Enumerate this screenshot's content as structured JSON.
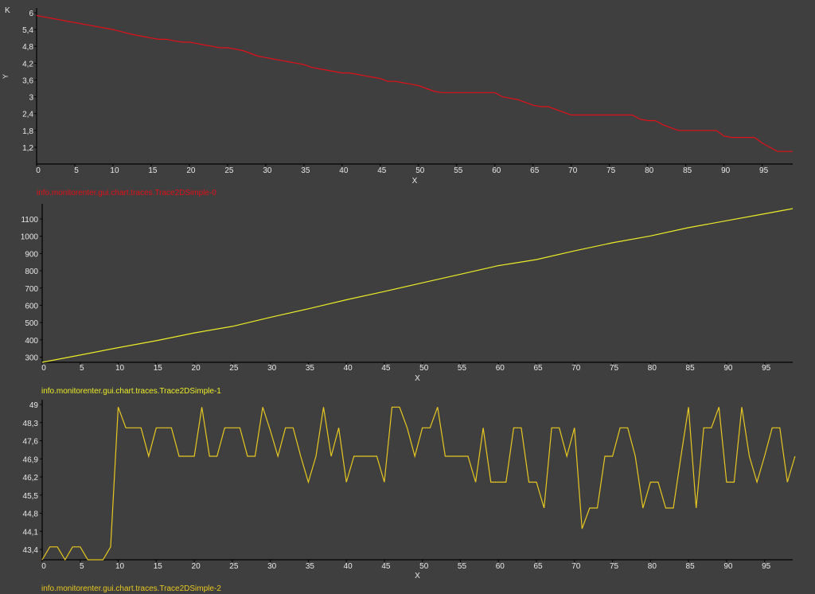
{
  "colors": {
    "background": "#3f3f3f",
    "axis": "#000000",
    "text": "#e8e8e8",
    "trace0": "#e0101a",
    "trace1": "#ecec28",
    "trace2": "#e8c820"
  },
  "chart_data": [
    {
      "type": "line",
      "xlabel": "X",
      "ylabel": "Y",
      "unit_label": "K",
      "xlim": [
        0,
        99
      ],
      "ylim": [
        0.6,
        6
      ],
      "x_ticks": [
        "0",
        "5",
        "10",
        "15",
        "20",
        "25",
        "30",
        "35",
        "40",
        "45",
        "50",
        "55",
        "60",
        "65",
        "70",
        "75",
        "80",
        "85",
        "90",
        "95"
      ],
      "y_ticks": [
        "1,2",
        "1,8",
        "2,4",
        "3",
        "3,6",
        "4,2",
        "4,8",
        "5,4",
        "6"
      ],
      "legend": "info.monitorenter.gui.chart.traces.Trace2DSimple-0",
      "series": [
        {
          "name": "info.monitorenter.gui.chart.traces.Trace2DSimple-0",
          "color": "#e0101a",
          "x": [
            0,
            1,
            2,
            3,
            4,
            5,
            6,
            7,
            8,
            9,
            10,
            11,
            12,
            13,
            14,
            15,
            16,
            17,
            18,
            19,
            20,
            21,
            22,
            23,
            24,
            25,
            26,
            27,
            28,
            29,
            30,
            31,
            32,
            33,
            34,
            35,
            36,
            37,
            38,
            39,
            40,
            41,
            42,
            43,
            44,
            45,
            46,
            47,
            48,
            49,
            50,
            51,
            52,
            53,
            54,
            55,
            56,
            57,
            58,
            59,
            60,
            61,
            62,
            63,
            64,
            65,
            66,
            67,
            68,
            69,
            70,
            71,
            72,
            73,
            74,
            75,
            76,
            77,
            78,
            79,
            80,
            81,
            82,
            83,
            84,
            85,
            86,
            87,
            88,
            89,
            90,
            91,
            92,
            93,
            94,
            95,
            96,
            97,
            98,
            99
          ],
          "values": [
            5.9,
            5.85,
            5.8,
            5.75,
            5.7,
            5.65,
            5.6,
            5.55,
            5.5,
            5.45,
            5.4,
            5.33,
            5.26,
            5.2,
            5.15,
            5.1,
            5.05,
            5.05,
            5.0,
            4.95,
            4.95,
            4.9,
            4.85,
            4.8,
            4.75,
            4.75,
            4.7,
            4.65,
            4.55,
            4.45,
            4.4,
            4.35,
            4.3,
            4.25,
            4.2,
            4.15,
            4.05,
            4.0,
            3.95,
            3.9,
            3.85,
            3.85,
            3.8,
            3.75,
            3.7,
            3.65,
            3.55,
            3.55,
            3.5,
            3.45,
            3.4,
            3.3,
            3.2,
            3.15,
            3.15,
            3.15,
            3.15,
            3.15,
            3.15,
            3.15,
            3.15,
            3.0,
            2.95,
            2.9,
            2.8,
            2.7,
            2.65,
            2.65,
            2.55,
            2.45,
            2.35,
            2.35,
            2.35,
            2.35,
            2.35,
            2.35,
            2.35,
            2.35,
            2.35,
            2.2,
            2.15,
            2.15,
            2.0,
            1.9,
            1.8,
            1.8,
            1.8,
            1.8,
            1.8,
            1.8,
            1.6,
            1.55,
            1.55,
            1.55,
            1.55,
            1.35,
            1.2,
            1.05,
            1.05,
            1.05
          ]
        }
      ]
    },
    {
      "type": "line",
      "xlabel": "X",
      "ylabel": "",
      "xlim": [
        0,
        98.7
      ],
      "ylim": [
        270,
        1160
      ],
      "x_ticks": [
        "0",
        "5",
        "10",
        "15",
        "20",
        "25",
        "30",
        "35",
        "40",
        "45",
        "50",
        "55",
        "60",
        "65",
        "70",
        "75",
        "80",
        "85",
        "90",
        "95"
      ],
      "y_ticks": [
        "300",
        "400",
        "500",
        "600",
        "700",
        "800",
        "900",
        "1000",
        "1100"
      ],
      "legend": "info.monitorenter.gui.chart.traces.Trace2DSimple-1",
      "series": [
        {
          "name": "info.monitorenter.gui.chart.traces.Trace2DSimple-1",
          "color": "#ecec28",
          "x": [
            0,
            5,
            10,
            15,
            20,
            25,
            30,
            35,
            40,
            45,
            50,
            55,
            60,
            65,
            70,
            75,
            80,
            85,
            90,
            95,
            98.7
          ],
          "values": [
            270,
            312,
            355,
            395,
            440,
            478,
            530,
            580,
            632,
            680,
            730,
            780,
            830,
            865,
            915,
            962,
            1002,
            1050,
            1090,
            1130,
            1160
          ]
        }
      ]
    },
    {
      "type": "line",
      "xlabel": "X",
      "ylabel": "",
      "xlim": [
        0,
        98.7
      ],
      "ylim": [
        43.0,
        49.0
      ],
      "x_ticks": [
        "0",
        "5",
        "10",
        "15",
        "20",
        "25",
        "30",
        "35",
        "40",
        "45",
        "50",
        "55",
        "60",
        "65",
        "70",
        "75",
        "80",
        "85",
        "90",
        "95"
      ],
      "y_ticks": [
        "43,4",
        "44,1",
        "44,8",
        "45,5",
        "46,2",
        "46,9",
        "47,6",
        "48,3",
        "49"
      ],
      "legend": "info.monitorenter.gui.chart.traces.Trace2DSimple-2",
      "series": [
        {
          "name": "info.monitorenter.gui.chart.traces.Trace2DSimple-2",
          "color": "#e8c820",
          "x": [
            0,
            1,
            2,
            3,
            4,
            5,
            6,
            7,
            8,
            9,
            10,
            11,
            12,
            13,
            14,
            15,
            16,
            17,
            18,
            19,
            20,
            21,
            22,
            23,
            24,
            25,
            26,
            27,
            28,
            29,
            30,
            31,
            32,
            33,
            34,
            35,
            36,
            37,
            38,
            39,
            40,
            41,
            42,
            43,
            44,
            45,
            46,
            47,
            48,
            49,
            50,
            51,
            52,
            53,
            54,
            55,
            56,
            57,
            58,
            59,
            60,
            61,
            62,
            63,
            64,
            65,
            66,
            67,
            68,
            69,
            70,
            71,
            72,
            73,
            74,
            75,
            76,
            77,
            78,
            79,
            80,
            81,
            82,
            83,
            84,
            85,
            86,
            87,
            88,
            89,
            90,
            91,
            92,
            93,
            94,
            95,
            96,
            97,
            98,
            99
          ],
          "values": [
            43.0,
            43.5,
            43.5,
            43.0,
            43.5,
            43.5,
            43.0,
            43.0,
            43.0,
            43.5,
            48.9,
            48.1,
            48.1,
            48.1,
            47.0,
            48.1,
            48.1,
            48.1,
            47.0,
            47.0,
            47.0,
            48.9,
            47.0,
            47.0,
            48.1,
            48.1,
            48.1,
            47.0,
            47.0,
            48.9,
            48.0,
            47.0,
            48.1,
            48.1,
            47.0,
            46.0,
            47.0,
            48.9,
            47.0,
            48.1,
            46.0,
            47.0,
            47.0,
            47.0,
            47.0,
            46.0,
            48.9,
            48.9,
            48.1,
            47.0,
            48.1,
            48.1,
            48.9,
            47.0,
            47.0,
            47.0,
            47.0,
            46.0,
            48.1,
            46.0,
            46.0,
            46.0,
            48.1,
            48.1,
            46.0,
            46.0,
            45.0,
            48.1,
            48.1,
            47.0,
            48.1,
            44.2,
            45.0,
            45.0,
            47.0,
            47.0,
            48.1,
            48.1,
            47.0,
            45.0,
            46.0,
            46.0,
            45.0,
            45.0,
            47.0,
            48.9,
            45.0,
            48.1,
            48.1,
            48.9,
            46.0,
            46.0,
            48.9,
            47.0,
            46.0,
            47.0,
            48.1,
            48.1,
            46.0,
            47.0
          ]
        }
      ]
    }
  ]
}
